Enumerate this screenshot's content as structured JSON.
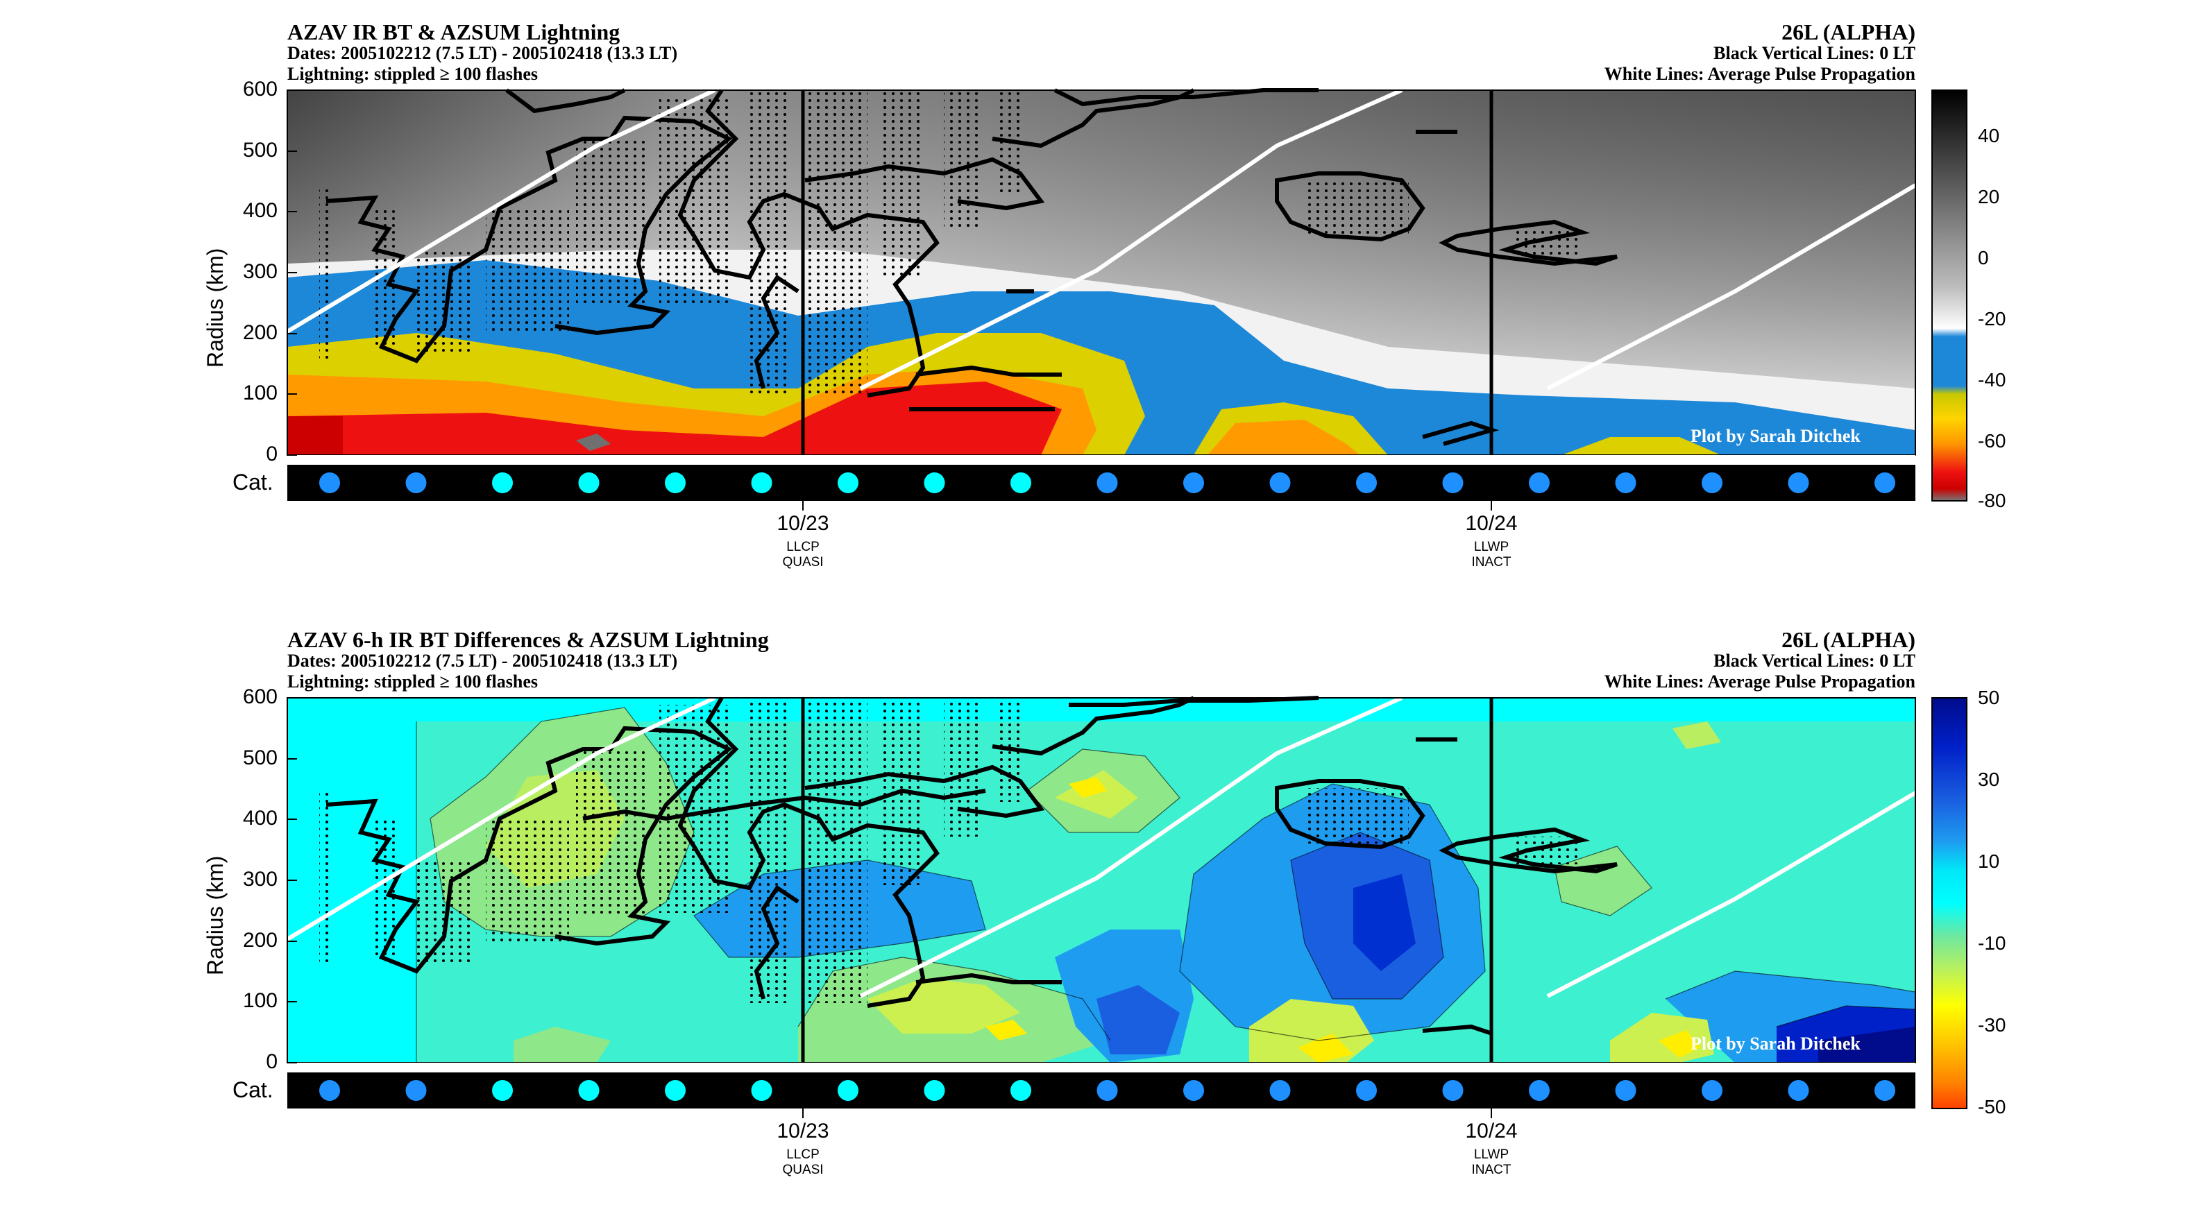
{
  "credit": "Plot by Sarah Ditchek",
  "panels": [
    {
      "title": "AZAV IR BT & AZSUM Lightning",
      "dates": "Dates: 2005102212 (7.5 LT) - 2005102418 (13.3 LT)",
      "lightning": "Lightning: stippled ≥ 100 flashes",
      "storm": "26L (ALPHA)",
      "vlines": "Black Vertical Lines: 0 LT",
      "wlines": "White Lines: Average Pulse Propagation",
      "ylabel": "Radius (km)",
      "cat_label": "Cat.",
      "yticks": [
        "0",
        "100",
        "200",
        "300",
        "400",
        "500",
        "600"
      ],
      "colorbar_ticks": [
        "40",
        "20",
        "0",
        "-20",
        "-40",
        "-60",
        "-80"
      ]
    },
    {
      "title": "AZAV 6-h IR BT Differences & AZSUM Lightning",
      "dates": "Dates: 2005102212 (7.5 LT) - 2005102418 (13.3 LT)",
      "lightning": "Lightning: stippled ≥ 100 flashes",
      "storm": "26L (ALPHA)",
      "vlines": "Black Vertical Lines: 0 LT",
      "wlines": "White Lines: Average Pulse Propagation",
      "ylabel": "Radius (km)",
      "cat_label": "Cat.",
      "yticks": [
        "0",
        "100",
        "200",
        "300",
        "400",
        "500",
        "600"
      ],
      "colorbar_ticks": [
        "50",
        "30",
        "10",
        "-10",
        "-30",
        "-50"
      ]
    }
  ],
  "xticks": [
    {
      "date": "10/23",
      "line1": "LLCP",
      "line2": "QUASI"
    },
    {
      "date": "10/24",
      "line1": "LLWP",
      "line2": "INACT"
    }
  ],
  "colors": {
    "cat_cyan": "#00ffff",
    "cat_blue": "#1e90ff",
    "td_blue": "#1e90ff"
  },
  "chart_data": [
    {
      "type": "heatmap",
      "title": "AZAV IR BT & AZSUM Lightning",
      "ylabel": "Radius (km)",
      "ylim": [
        0,
        600
      ],
      "colorbar_range": [
        -80,
        55
      ],
      "x_tick_labels": [
        "10/23",
        "10/24"
      ],
      "time_span": [
        "2005102212",
        "2005102418"
      ],
      "category_markers": [
        "blue",
        "blue",
        "cyan",
        "cyan",
        "cyan",
        "cyan",
        "cyan",
        "cyan",
        "cyan",
        "blue",
        "blue",
        "blue",
        "blue",
        "blue",
        "blue",
        "blue",
        "blue",
        "blue",
        "blue"
      ]
    },
    {
      "type": "heatmap",
      "title": "AZAV 6-h IR BT Differences & AZSUM Lightning",
      "ylabel": "Radius (km)",
      "ylim": [
        0,
        600
      ],
      "colorbar_range": [
        -50,
        50
      ],
      "x_tick_labels": [
        "10/23",
        "10/24"
      ],
      "time_span": [
        "2005102212",
        "2005102418"
      ],
      "category_markers": [
        "blue",
        "blue",
        "cyan",
        "cyan",
        "cyan",
        "cyan",
        "cyan",
        "cyan",
        "cyan",
        "blue",
        "blue",
        "blue",
        "blue",
        "blue",
        "blue",
        "blue",
        "blue",
        "blue",
        "blue"
      ]
    }
  ]
}
